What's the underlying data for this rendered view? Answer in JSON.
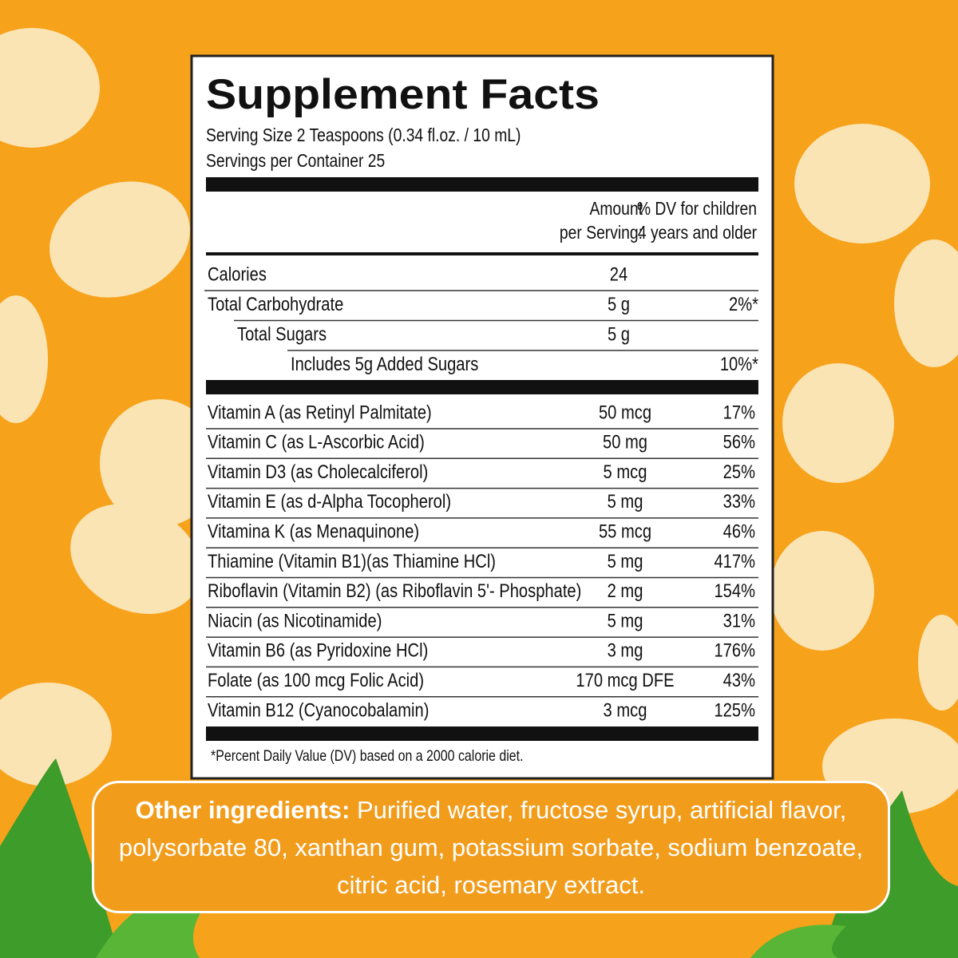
{
  "title": "Supplement Facts",
  "serving_size": "Serving Size 2 Teaspoons (0.34 fl.oz. / 10 mL)",
  "servings_per_container": "Servings per Container 25",
  "columns": {
    "amount": [
      "Amount",
      "per Serving:"
    ],
    "dv": [
      "% DV for children",
      "4 years and older"
    ]
  },
  "nutrients": [
    {
      "label": "Calories",
      "amount": "24"
    },
    {
      "label": "Total Carbohydrate",
      "amount": "5 g",
      "dv": "2%*"
    },
    {
      "label": "Total Sugars",
      "amount": "5 g"
    },
    {
      "label": "Includes 5g Added Sugars",
      "dv": "10%*"
    }
  ],
  "vitamins": [
    {
      "label": "Vitamin A (as Retinyl Palmitate)",
      "amount": "50 mcg",
      "dv": "17%"
    },
    {
      "label": "Vitamin C (as L-Ascorbic Acid)",
      "amount": "50 mg",
      "dv": "56%"
    },
    {
      "label": "Vitamin D3 (as Cholecalciferol)",
      "amount": "5 mcg",
      "dv": "25%"
    },
    {
      "label": "Vitamin E (as d-Alpha Tocopherol)",
      "amount": "5 mg",
      "dv": "33%"
    },
    {
      "label": "Vitamina K (as Menaquinone)",
      "amount": "55 mcg",
      "dv": "46%"
    },
    {
      "label": "Thiamine (Vitamin B1)(as Thiamine HCl)",
      "amount": "5 mg",
      "dv": "417%"
    },
    {
      "label": "Riboflavin (Vitamin B2) (as Riboflavin 5'- Phosphate)",
      "amount": "2 mg",
      "dv": "154%"
    },
    {
      "label": "Niacin (as Nicotinamide)",
      "amount": "5 mg",
      "dv": "31%"
    },
    {
      "label": "Vitamin B6 (as Pyridoxine HCl)",
      "amount": "3 mg",
      "dv": "176%"
    },
    {
      "label": "Folate (as 100 mcg Folic Acid)",
      "amount": "170 mcg DFE",
      "dv": "43%"
    },
    {
      "label": "Vitamin B12 (Cyanocobalamin)",
      "amount": "3 mcg",
      "dv": "125%"
    }
  ],
  "footnote": "*Percent Daily Value (DV) based on a 2000 calorie diet.",
  "other_ingredients": {
    "label": "Other ingredients:",
    "text": "Purified water, fructose syrup, artificial flavor, polysorbate 80, xanthan gum, potassium sorbate, sodium benzoate, citric acid, rosemary extract."
  }
}
